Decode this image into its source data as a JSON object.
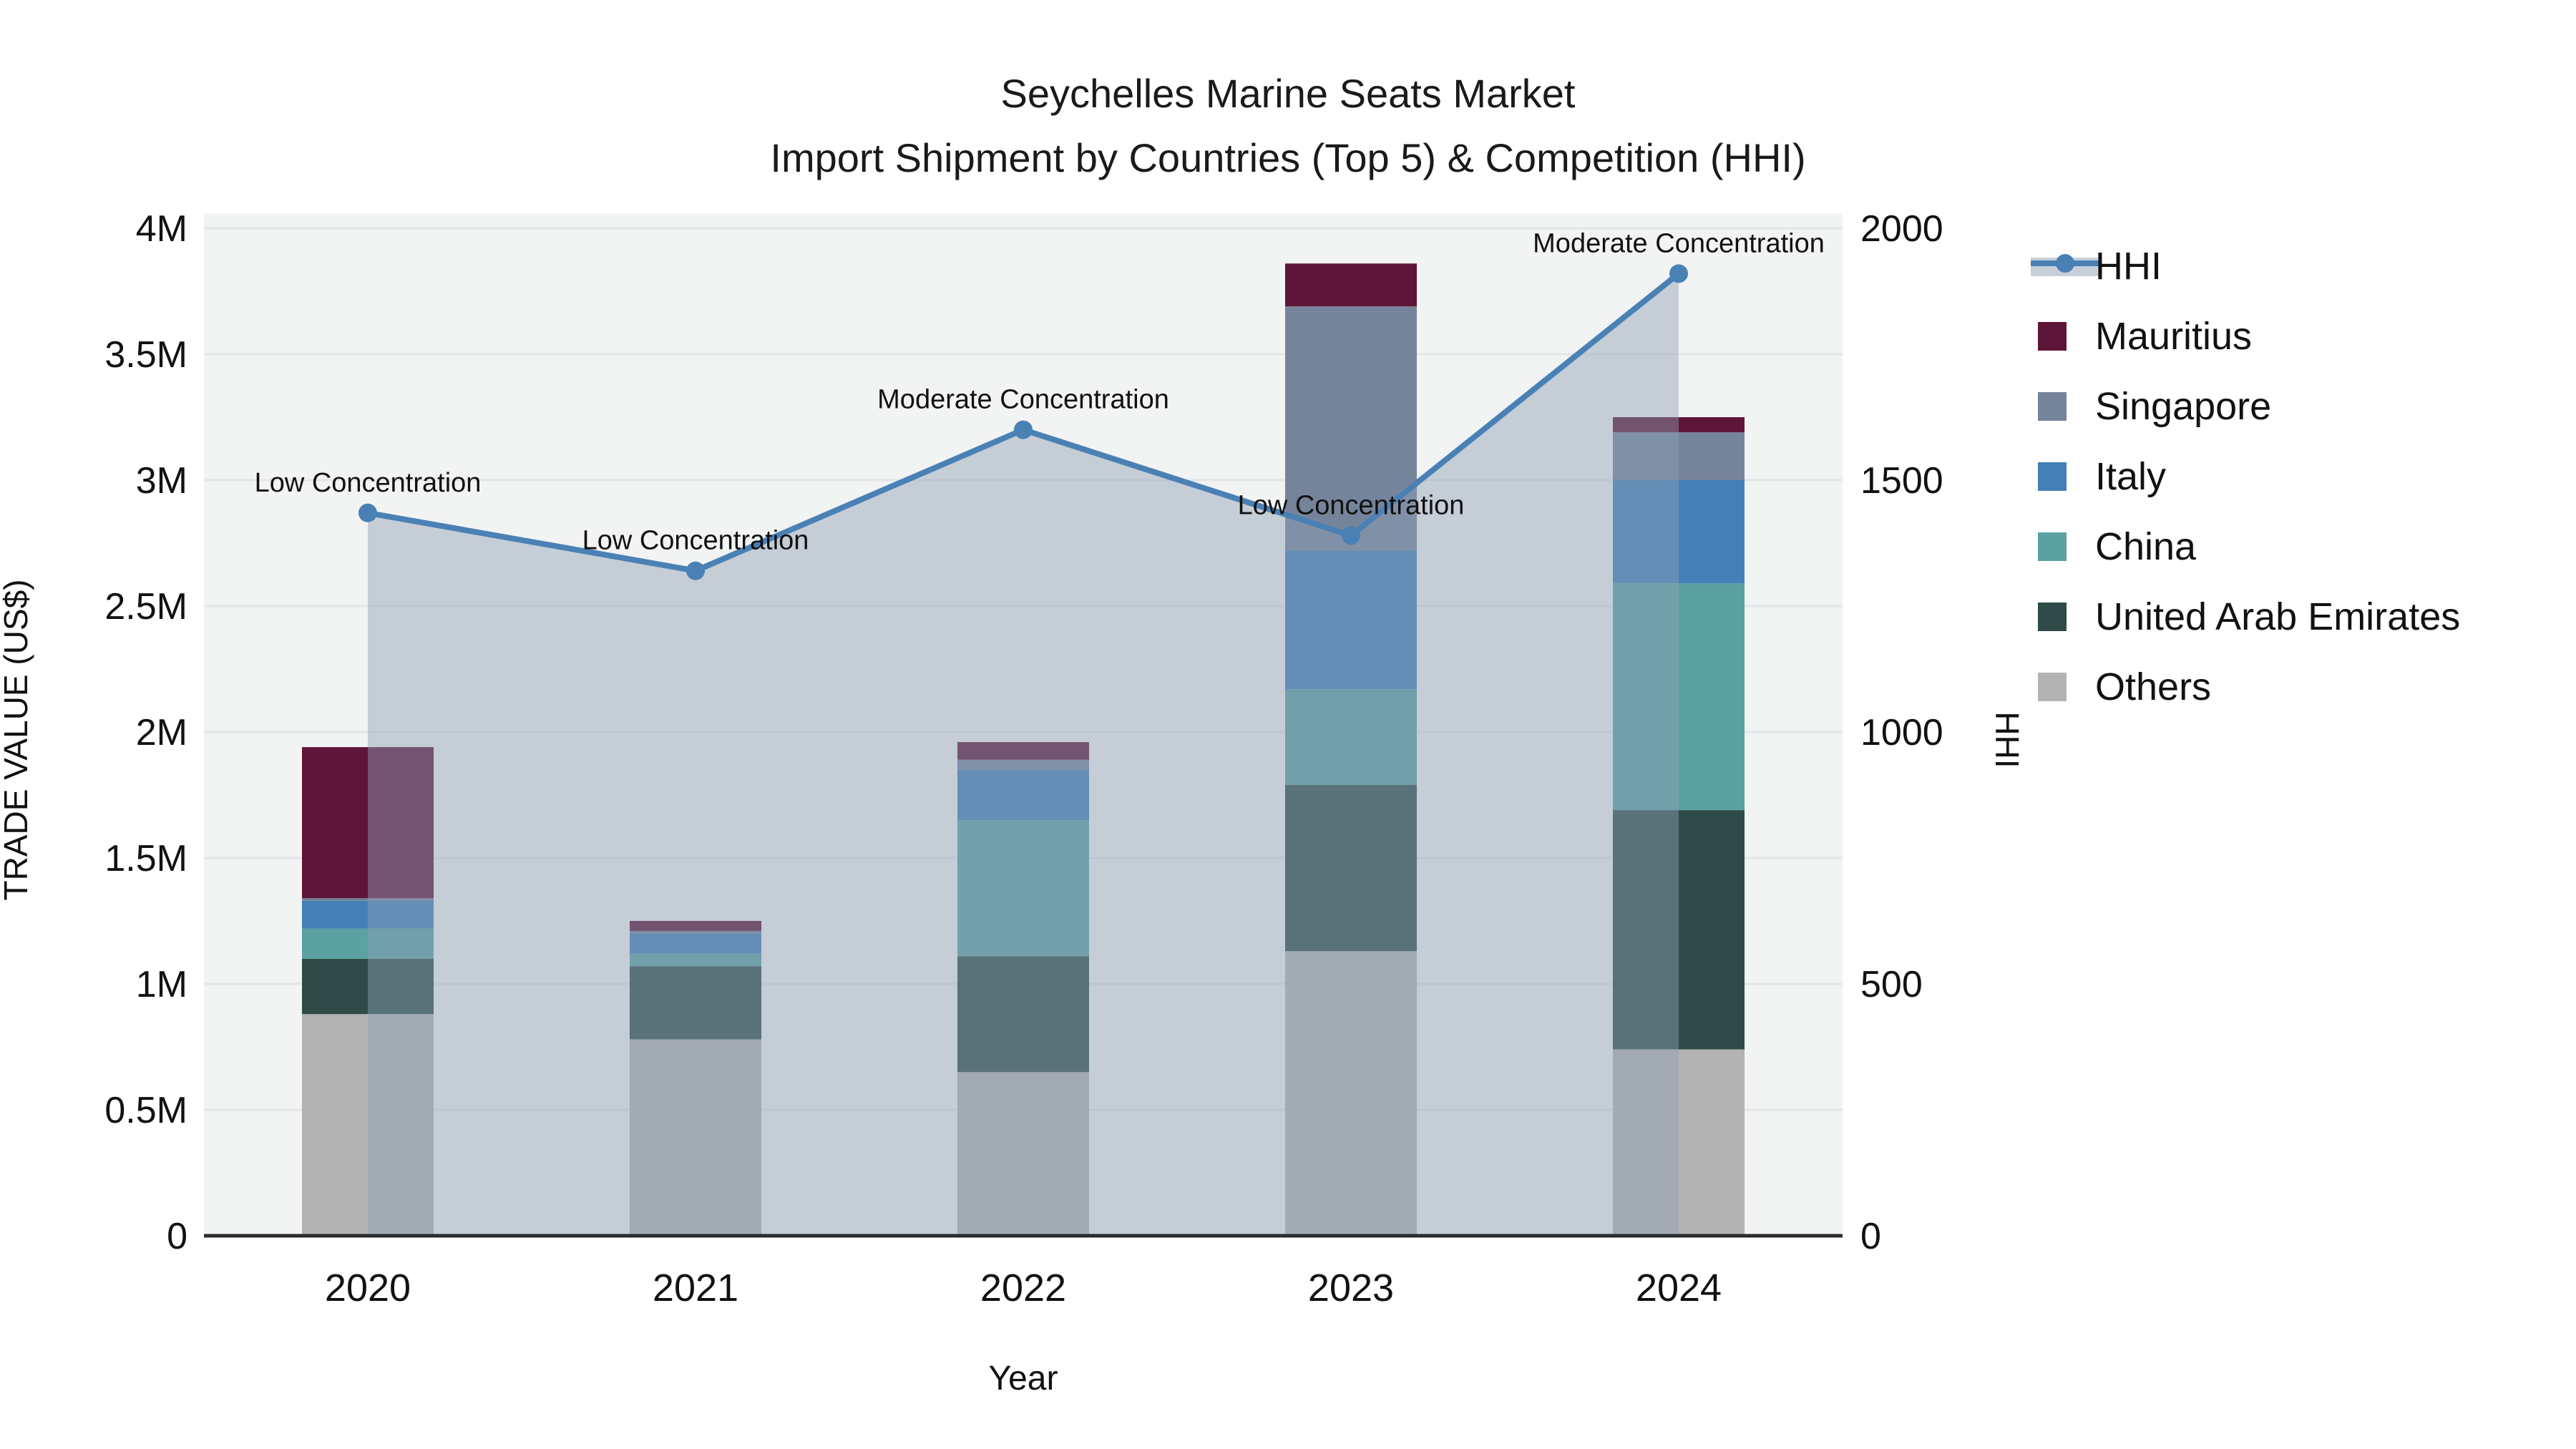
{
  "title": {
    "line1": "Seychelles Marine Seats Market",
    "line2": "Import Shipment by Countries (Top 5) & Competition (HHI)"
  },
  "axes": {
    "left": {
      "title": "TRADE VALUE (US$)",
      "tick_labels": [
        "0",
        "0.5M",
        "1M",
        "1.5M",
        "2M",
        "2.5M",
        "3M",
        "3.5M",
        "4M"
      ],
      "tick_values": [
        0,
        0.5,
        1,
        1.5,
        2,
        2.5,
        3,
        3.5,
        4
      ]
    },
    "right": {
      "title": "HHI",
      "tick_labels": [
        "0",
        "500",
        "1000",
        "1500",
        "2000"
      ],
      "tick_values": [
        0,
        500,
        1000,
        1500,
        2000
      ]
    },
    "bottom": {
      "title": "Year"
    }
  },
  "legend": {
    "items": [
      {
        "label": "HHI",
        "type": "line",
        "color": "#4A81B5"
      },
      {
        "label": "Mauritius",
        "type": "square",
        "color": "#5E1638"
      },
      {
        "label": "Singapore",
        "type": "square",
        "color": "#76849B"
      },
      {
        "label": "Italy",
        "type": "square",
        "color": "#4480B7"
      },
      {
        "label": "China",
        "type": "square",
        "color": "#5CA1A1"
      },
      {
        "label": "United Arab Emirates",
        "type": "square",
        "color": "#2E4B48"
      },
      {
        "label": "Others",
        "type": "square",
        "color": "#B3B3B3"
      }
    ]
  },
  "colors": {
    "plot_background": "#f2f3f3",
    "gridline": "#e4e6e8",
    "axis_line": "#2b2b2b",
    "text": "#111111",
    "hhi_line": "#4A81B5",
    "hhi_area_fill": "rgba(143,160,181,0.45)",
    "legend_band": "rgba(143,160,181,0.5)"
  },
  "chart_data": {
    "type": "bar+line",
    "title": "Seychelles Marine Seats Market — Import Shipment by Countries (Top 5) & Competition (HHI)",
    "categories": [
      "2020",
      "2021",
      "2022",
      "2023",
      "2024"
    ],
    "stacked": true,
    "value_unit": "US$ millions",
    "series": [
      {
        "name": "Others",
        "color": "#B3B3B3",
        "values": [
          0.88,
          0.78,
          0.65,
          1.13,
          0.74
        ]
      },
      {
        "name": "United Arab Emirates",
        "color": "#2E4B48",
        "values": [
          0.22,
          0.29,
          0.46,
          0.66,
          0.95
        ]
      },
      {
        "name": "China",
        "color": "#5CA1A1",
        "values": [
          0.12,
          0.05,
          0.54,
          0.38,
          0.9
        ]
      },
      {
        "name": "Italy",
        "color": "#4480B7",
        "values": [
          0.11,
          0.08,
          0.2,
          0.55,
          0.41
        ]
      },
      {
        "name": "Singapore",
        "color": "#76849B",
        "values": [
          0.01,
          0.01,
          0.04,
          0.97,
          0.19
        ]
      },
      {
        "name": "Mauritius",
        "color": "#5E1638",
        "values": [
          0.6,
          0.04,
          0.07,
          0.17,
          0.06
        ]
      }
    ],
    "bar_totals": [
      1.94,
      1.25,
      1.96,
      3.86,
      3.25
    ],
    "line_series": {
      "name": "HHI",
      "values": [
        1435,
        1320,
        1600,
        1390,
        1910
      ],
      "axis": "right"
    },
    "annotations": [
      "Low Concentration",
      "Low Concentration",
      "Moderate Concentration",
      "Low Concentration",
      "Moderate Concentration"
    ],
    "xlabel": "Year",
    "ylabel_left": "TRADE VALUE (US$)",
    "ylabel_right": "HHI",
    "ylim_left": [
      0,
      4.06
    ],
    "ylim_right": [
      0,
      2030
    ],
    "grid": "horizontal",
    "legend_position": "right"
  }
}
